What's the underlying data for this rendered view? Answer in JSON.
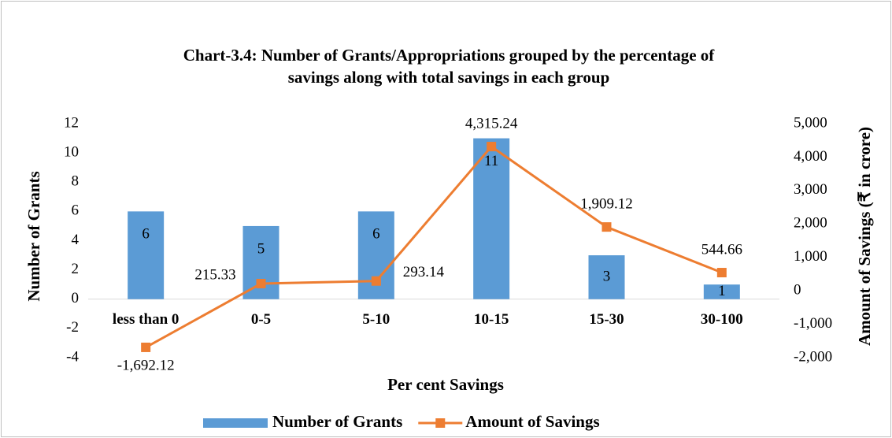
{
  "chart_data": {
    "type": "bar_line",
    "title": [
      "Chart-3.4: Number of Grants/Appropriations grouped by the percentage of",
      "savings along with total savings in each group"
    ],
    "x_label": "Per cent Savings",
    "y_label": "Number of Grants",
    "y2_label": "Amount of Savings (₹ in crore)",
    "categories": [
      "less than 0",
      "0-5",
      "5-10",
      "10-15",
      "15-30",
      "30-100"
    ],
    "series": [
      {
        "name": "Number of Grants",
        "type": "bar",
        "color": "#5b9bd5",
        "values": [
          6,
          5,
          6,
          11,
          3,
          1
        ]
      },
      {
        "name": "Amount of Savings",
        "type": "line",
        "axis": "y2",
        "color": "#ed7d31",
        "values": [
          -1692.12,
          215.33,
          293.14,
          4315.24,
          1909.12,
          544.66
        ],
        "value_labels": [
          "-1,692.12",
          "215.33",
          "293.14",
          "4,315.24",
          "1,909.12",
          "544.66"
        ]
      }
    ],
    "ylim": [
      -4,
      12
    ],
    "yticks": [
      -4,
      -2,
      0,
      2,
      4,
      6,
      8,
      10,
      12
    ],
    "y2lim": [
      -2000,
      5000
    ],
    "y2ticks": [
      {
        "value": -2000,
        "label": "-2,000"
      },
      {
        "value": -1000,
        "label": "-1,000"
      },
      0,
      {
        "value": 1000,
        "label": "1,000"
      },
      {
        "value": 2000,
        "label": "2,000"
      },
      {
        "value": 3000,
        "label": "3,000"
      },
      {
        "value": 4000,
        "label": "4,000"
      },
      {
        "value": 5000,
        "label": "5,000"
      }
    ],
    "legend": "bottom"
  }
}
